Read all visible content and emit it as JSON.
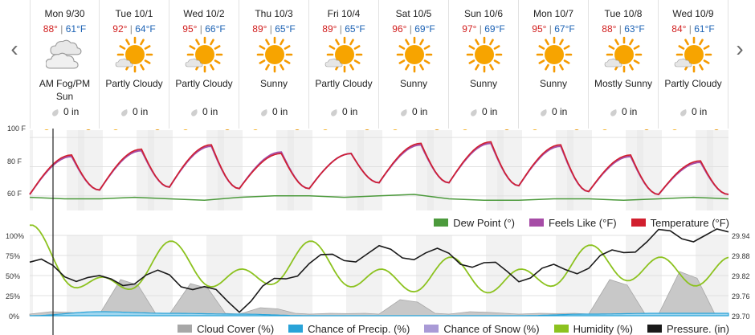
{
  "days": [
    {
      "name": "Mon 9/30",
      "hi": "88°",
      "lo": "61°F",
      "cond": "AM Fog/PM Sun",
      "icon": "fog-cloud-icon",
      "precip": "0 in"
    },
    {
      "name": "Tue 10/1",
      "hi": "92°",
      "lo": "64°F",
      "cond": "Partly Cloudy",
      "icon": "partly-cloudy-icon",
      "precip": "0 in"
    },
    {
      "name": "Wed 10/2",
      "hi": "95°",
      "lo": "66°F",
      "cond": "Partly Cloudy",
      "icon": "partly-cloudy-icon",
      "precip": "0 in"
    },
    {
      "name": "Thu 10/3",
      "hi": "89°",
      "lo": "65°F",
      "cond": "Sunny",
      "icon": "sun-icon",
      "precip": "0 in"
    },
    {
      "name": "Fri 10/4",
      "hi": "89°",
      "lo": "65°F",
      "cond": "Partly Cloudy",
      "icon": "partly-cloudy-icon",
      "precip": "0 in"
    },
    {
      "name": "Sat 10/5",
      "hi": "96°",
      "lo": "69°F",
      "cond": "Sunny",
      "icon": "sun-icon",
      "precip": "0 in"
    },
    {
      "name": "Sun 10/6",
      "hi": "97°",
      "lo": "69°F",
      "cond": "Sunny",
      "icon": "sun-icon",
      "precip": "0 in"
    },
    {
      "name": "Mon 10/7",
      "hi": "95°",
      "lo": "67°F",
      "cond": "Sunny",
      "icon": "sun-icon",
      "precip": "0 in"
    },
    {
      "name": "Tue 10/8",
      "hi": "88°",
      "lo": "63°F",
      "cond": "Mostly Sunny",
      "icon": "partly-cloudy-icon",
      "precip": "0 in"
    },
    {
      "name": "Wed 10/9",
      "hi": "84°",
      "lo": "61°F",
      "cond": "Partly Cloudy",
      "icon": "partly-cloudy-icon",
      "precip": "0 in"
    }
  ],
  "temp_chart": {
    "y_ticks": [
      "100 F",
      "80 F",
      "60 F"
    ],
    "legend": [
      {
        "label": "Dew Point (°)",
        "color": "#4c9a3c"
      },
      {
        "label": "Feels Like (°F)",
        "color": "#a64ca6"
      },
      {
        "label": "Temperature (°F)",
        "color": "#d11f2e"
      }
    ]
  },
  "pct_chart": {
    "left_ticks": [
      "100%",
      "75%",
      "50%",
      "25%",
      "0%"
    ],
    "right_ticks": [
      "29.94",
      "29.88",
      "29.82",
      "29.76",
      "29.70"
    ],
    "legend": [
      {
        "label": "Cloud Cover (%)",
        "color": "#a7a7a7"
      },
      {
        "label": "Chance of Precip. (%)",
        "color": "#29a3d8"
      },
      {
        "label": "Chance of Snow (%)",
        "color": "#a99ad6"
      },
      {
        "label": "Humidity (%)",
        "color": "#8cc21f"
      },
      {
        "label": "Pressure. (in)",
        "color": "#1a1a1a"
      }
    ]
  },
  "colors": {
    "temperature": "#d11f2e",
    "feels_like": "#a64ca6",
    "dew_point": "#4c9a3c",
    "humidity": "#8cc21f",
    "pressure": "#1a1a1a",
    "cloud": "#c8c8c8",
    "precip": "#29a3d8",
    "sun": "#f59a00"
  },
  "chart_data": [
    {
      "type": "line",
      "x": [
        "Mon 9/30",
        "Tue 10/1",
        "Wed 10/2",
        "Thu 10/3",
        "Fri 10/4",
        "Sat 10/5",
        "Sun 10/6",
        "Mon 10/7",
        "Tue 10/8",
        "Wed 10/9"
      ],
      "ylabel": "",
      "ylim": [
        50,
        105
      ],
      "series": [
        {
          "name": "Temperature (°F)",
          "highs": [
            88,
            92,
            95,
            89,
            89,
            96,
            97,
            95,
            88,
            84
          ],
          "lows": [
            61,
            64,
            66,
            65,
            65,
            69,
            69,
            67,
            63,
            61
          ]
        },
        {
          "name": "Feels Like (°F)",
          "highs": [
            87,
            91,
            94,
            90,
            89,
            95,
            96,
            94,
            87,
            83
          ],
          "lows": [
            61,
            64,
            66,
            65,
            65,
            69,
            69,
            67,
            63,
            61
          ]
        },
        {
          "name": "Dew Point (°)",
          "values": [
            59,
            58,
            58,
            59,
            60,
            60,
            58,
            57,
            58,
            58
          ]
        }
      ],
      "legend_position": "bottom-right"
    },
    {
      "type": "area",
      "x": [
        "Mon 9/30",
        "Tue 10/1",
        "Wed 10/2",
        "Thu 10/3",
        "Fri 10/4",
        "Sat 10/5",
        "Sun 10/6",
        "Mon 10/7",
        "Tue 10/8",
        "Wed 10/9"
      ],
      "ylim": [
        0,
        100
      ],
      "y2lim": [
        29.7,
        29.94
      ],
      "series": [
        {
          "name": "Cloud Cover (%)",
          "values": [
            5,
            45,
            40,
            10,
            3,
            20,
            5,
            3,
            45,
            55
          ]
        },
        {
          "name": "Chance of Precip. (%)",
          "values": [
            0,
            5,
            3,
            2,
            0,
            0,
            0,
            0,
            2,
            3
          ]
        },
        {
          "name": "Chance of Snow (%)",
          "values": [
            0,
            0,
            0,
            0,
            0,
            0,
            0,
            0,
            0,
            0
          ]
        },
        {
          "name": "Humidity (%)",
          "values": [
            95,
            30,
            75,
            40,
            75,
            40,
            55,
            40,
            70,
            55
          ]
        },
        {
          "name": "Pressure. (in)",
          "values": [
            29.86,
            29.8,
            29.82,
            29.73,
            29.86,
            29.89,
            29.88,
            29.82,
            29.85,
            29.94
          ]
        }
      ],
      "legend_position": "bottom"
    }
  ]
}
